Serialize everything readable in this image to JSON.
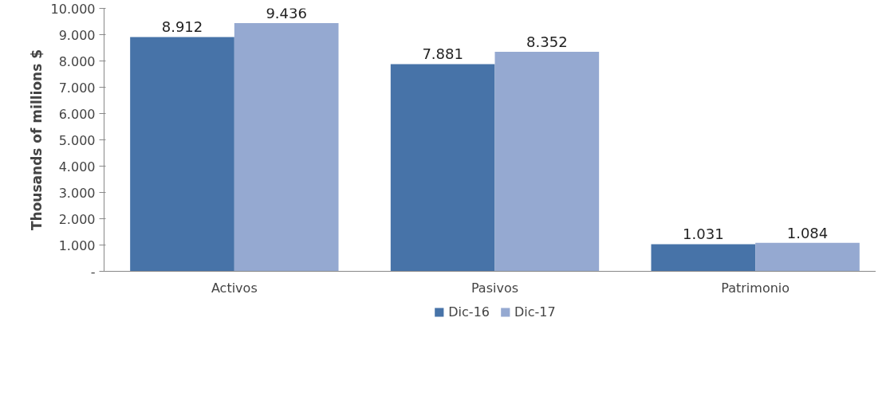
{
  "chart_data": {
    "type": "bar",
    "ylabel": "Thousands of millions $",
    "categories": [
      "Activos",
      "Pasivos",
      "Patrimonio"
    ],
    "series": [
      {
        "name": "Dic-16",
        "color": "#4773a8",
        "values": [
          8912,
          7881,
          1031
        ],
        "value_labels": [
          "8.912",
          "7.881",
          "1.031"
        ]
      },
      {
        "name": "Dic-17",
        "color": "#95a9d1",
        "values": [
          9436,
          8352,
          1084
        ],
        "value_labels": [
          "9.436",
          "8.352",
          "1.084"
        ]
      }
    ],
    "ylim": [
      0,
      10000
    ],
    "yticks": [
      {
        "value": 0,
        "label": "-"
      },
      {
        "value": 1000,
        "label": "1.000"
      },
      {
        "value": 2000,
        "label": "2.000"
      },
      {
        "value": 3000,
        "label": "3.000"
      },
      {
        "value": 4000,
        "label": "4.000"
      },
      {
        "value": 5000,
        "label": "5.000"
      },
      {
        "value": 6000,
        "label": "6.000"
      },
      {
        "value": 7000,
        "label": "7.000"
      },
      {
        "value": 8000,
        "label": "8.000"
      },
      {
        "value": 9000,
        "label": "9.000"
      },
      {
        "value": 10000,
        "label": "10.000"
      }
    ],
    "grid": false,
    "legend": "bottom"
  }
}
